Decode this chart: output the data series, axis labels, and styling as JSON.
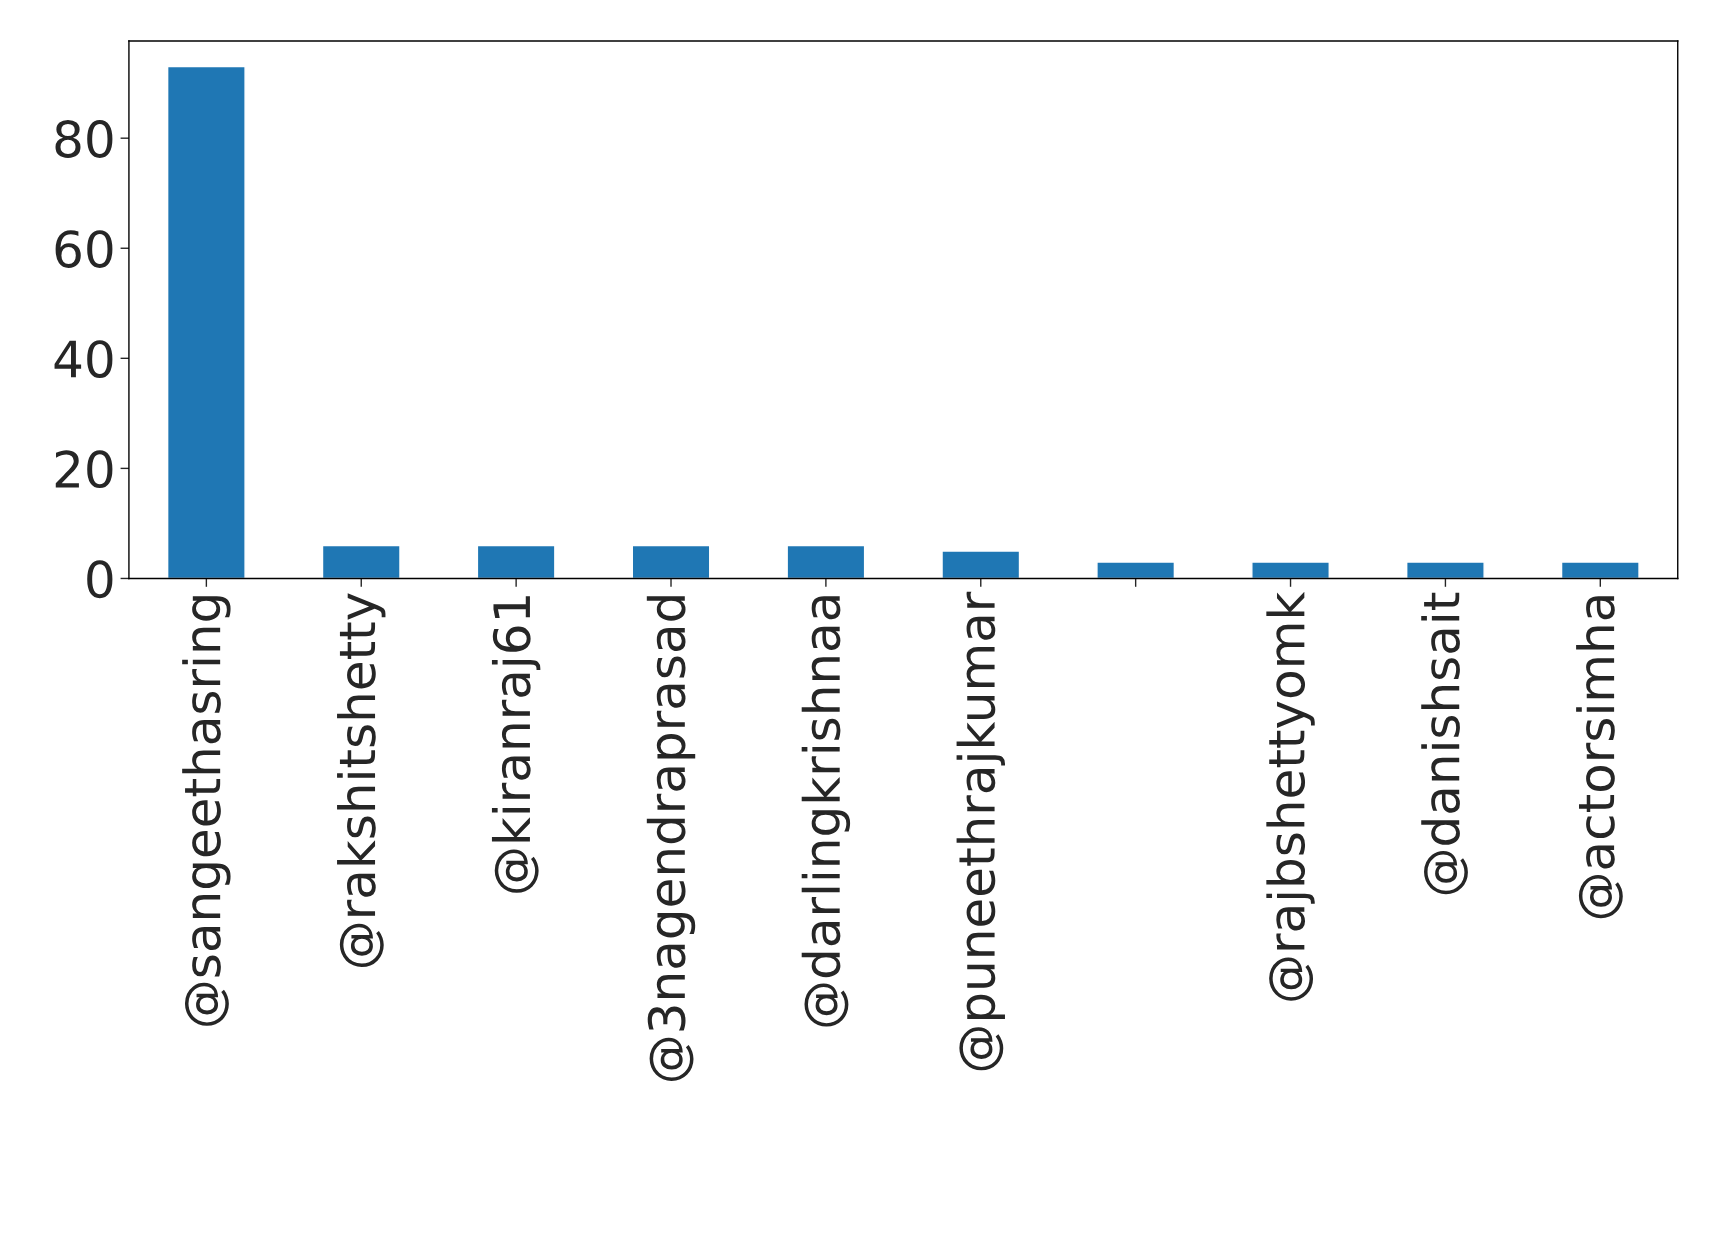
{
  "chart_data": {
    "type": "bar",
    "categories": [
      "@sangeethasring",
      "@rakshitshetty",
      "@kiranraj61",
      "@3nagendraprasad",
      "@darlingkrishnaa",
      "@puneethrajkumar",
      null,
      "@rajbshettyomk",
      "@danishsait",
      "@actorsimha"
    ],
    "values": [
      93,
      6,
      6,
      6,
      6,
      5,
      3,
      3,
      3,
      3
    ],
    "color": "#1f77b4",
    "ylim": [
      0,
      97.65
    ],
    "yticks": [
      0,
      20,
      40,
      60,
      80
    ],
    "grid": false,
    "legend": false
  }
}
